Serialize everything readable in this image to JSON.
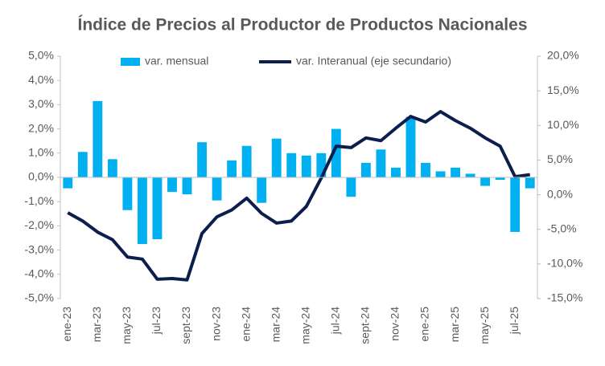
{
  "chart_data": {
    "type": "bar-line",
    "title": "Índice de Precios al Productor de Productos Nacionales",
    "categories": [
      "ene-23",
      null,
      "mar-23",
      null,
      "may-23",
      null,
      "jul-23",
      null,
      "sept-23",
      null,
      "nov-23",
      null,
      "ene-24",
      null,
      "mar-24",
      null,
      "may-24",
      null,
      "jul-24",
      null,
      "sept-24",
      null,
      "nov-24",
      null,
      "ene-25",
      null,
      "mar-25",
      null,
      "may-25",
      null,
      "jul-25",
      null
    ],
    "series": [
      {
        "name": "var. mensual",
        "color": "#00b0f0",
        "axis": "y",
        "values": [
          -0.45,
          1.05,
          3.15,
          0.75,
          -1.35,
          -2.75,
          -2.55,
          -0.6,
          -0.7,
          1.45,
          -0.95,
          0.7,
          1.3,
          -1.05,
          1.6,
          1.0,
          0.9,
          1.0,
          2.0,
          -0.8,
          0.6,
          1.15,
          0.4,
          2.5,
          0.6,
          0.25,
          0.4,
          0.15,
          -0.35,
          -0.1,
          -2.25,
          -0.45
        ]
      },
      {
        "name": "var. Interanual (eje secundario)",
        "color": "#0c1e4d",
        "axis": "y2",
        "values": [
          -2.6,
          -3.8,
          -5.4,
          -6.5,
          -9.0,
          -9.3,
          -12.2,
          -12.1,
          -12.3,
          -5.6,
          -3.2,
          -2.2,
          -0.5,
          -2.7,
          -4.1,
          -3.8,
          -1.7,
          2.4,
          7.0,
          6.8,
          8.2,
          7.8,
          9.6,
          11.3,
          10.5,
          12.0,
          10.7,
          9.6,
          8.2,
          7.0,
          2.6,
          2.9
        ]
      }
    ],
    "ylim": [
      -5,
      5
    ],
    "yticks": [
      {
        "value": -5,
        "label": "-5,0%"
      },
      {
        "value": -4,
        "label": "-4,0%"
      },
      {
        "value": -3,
        "label": "-3,0%"
      },
      {
        "value": -2,
        "label": "-2,0%"
      },
      {
        "value": -1,
        "label": "-1,0%"
      },
      {
        "value": 0,
        "label": "0,0%"
      },
      {
        "value": 1,
        "label": "1,0%"
      },
      {
        "value": 2,
        "label": "2,0%"
      },
      {
        "value": 3,
        "label": "3,0%"
      },
      {
        "value": 4,
        "label": "4,0%"
      },
      {
        "value": 5,
        "label": "5,0%"
      }
    ],
    "y2lim": [
      -15,
      20
    ],
    "y2ticks": [
      {
        "value": -15,
        "label": "-15,0%"
      },
      {
        "value": -10,
        "label": "-10,0%"
      },
      {
        "value": -5,
        "label": "-5,0%"
      },
      {
        "value": 0,
        "label": "0,0%"
      },
      {
        "value": 5,
        "label": "5,0%"
      },
      {
        "value": 10,
        "label": "10,0%"
      },
      {
        "value": 15,
        "label": "15,0%"
      },
      {
        "value": 20,
        "label": "20,0%"
      }
    ],
    "legend": "top"
  }
}
